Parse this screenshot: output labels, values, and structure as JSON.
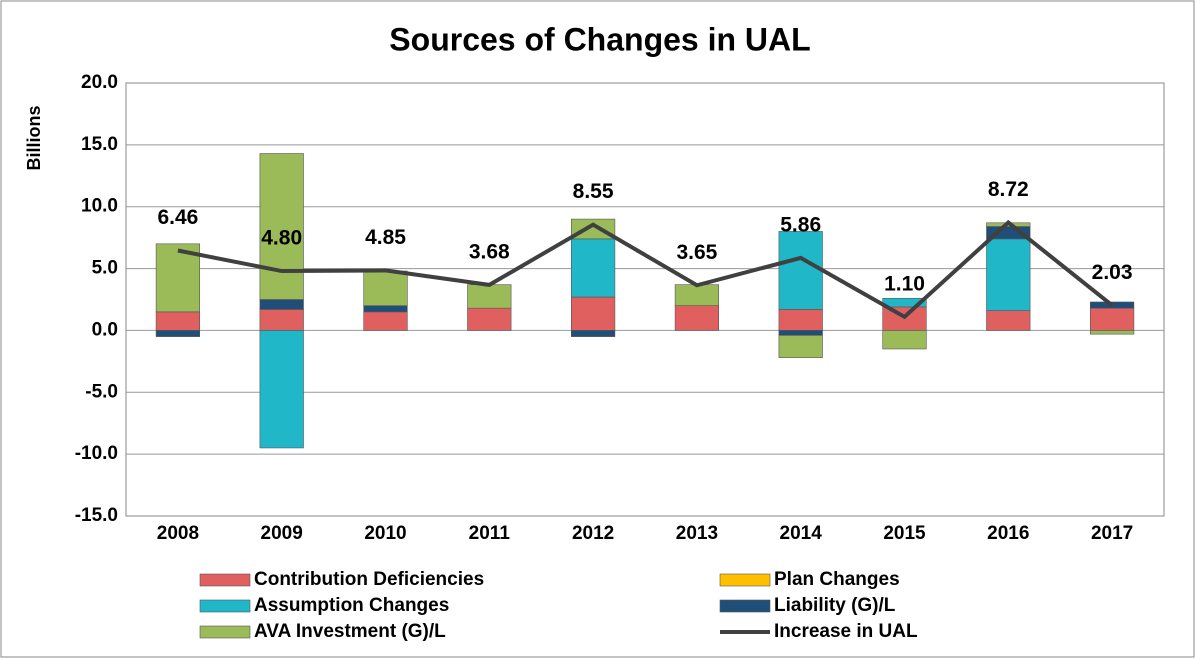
{
  "chart_data": {
    "type": "bar",
    "title": "Sources of Changes in UAL",
    "y_label": "Billions",
    "categories": [
      "2008",
      "2009",
      "2010",
      "2011",
      "2012",
      "2013",
      "2014",
      "2015",
      "2016",
      "2017"
    ],
    "series": [
      {
        "name": "Contribution Deficiencies",
        "color": "#e06060",
        "values": [
          1.5,
          1.7,
          1.5,
          1.8,
          2.7,
          2.0,
          1.7,
          1.9,
          1.6,
          1.8
        ]
      },
      {
        "name": "Plan Changes",
        "color": "#ffc000",
        "values": [
          0,
          0,
          0,
          0,
          0,
          0,
          0,
          0,
          0,
          0
        ]
      },
      {
        "name": "Assumption Changes",
        "color": "#20b8c8",
        "values": [
          0,
          -9.5,
          0,
          0,
          4.7,
          0,
          6.3,
          0.7,
          5.8,
          0
        ]
      },
      {
        "name": "Liability (G)/L",
        "color": "#1f4e79",
        "values": [
          -0.5,
          0.8,
          0.5,
          0,
          -0.5,
          0,
          -0.4,
          0,
          1.0,
          0.5
        ]
      },
      {
        "name": "AVA Investment (G)/L",
        "color": "#9bbb59",
        "values": [
          5.5,
          11.8,
          2.8,
          1.9,
          1.6,
          1.7,
          -1.8,
          -1.5,
          0.3,
          -0.3
        ]
      },
      {
        "name": "Increase in UAL",
        "color": "#404040",
        "type": "line",
        "values": [
          6.46,
          4.8,
          4.85,
          3.68,
          8.55,
          3.65,
          5.86,
          1.1,
          8.72,
          2.03
        ],
        "value_labels": [
          "6.46",
          "4.80",
          "4.85",
          "3.68",
          "8.55",
          "3.65",
          "5.86",
          "1.10",
          "8.72",
          "2.03"
        ]
      }
    ],
    "ylim": [
      -15,
      20
    ],
    "yticks": [
      {
        "value": -15,
        "label": "-15.0"
      },
      {
        "value": -10,
        "label": "-10.0"
      },
      {
        "value": -5,
        "label": "-5.0"
      },
      {
        "value": 0,
        "label": "0.0"
      },
      {
        "value": 5,
        "label": "5.0"
      },
      {
        "value": 10,
        "label": "10.0"
      },
      {
        "value": 15,
        "label": "15.0"
      },
      {
        "value": 20,
        "label": "20.0"
      }
    ],
    "grid": true,
    "legend": "bottom"
  }
}
